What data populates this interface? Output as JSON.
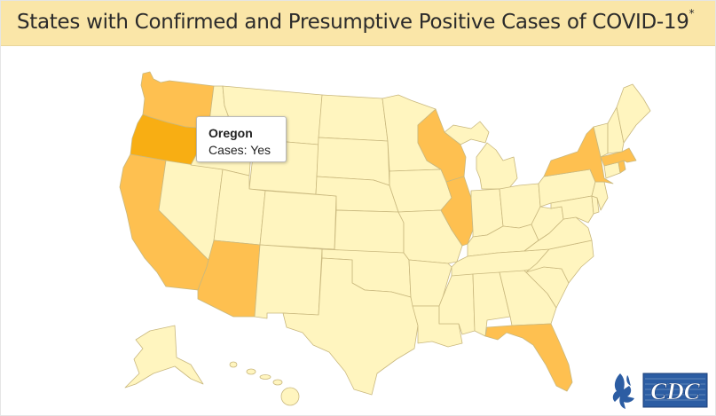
{
  "header": {
    "title": "States with Confirmed and Presumptive Positive Cases of COVID-19",
    "title_mark": "*"
  },
  "tooltip": {
    "name": "Oregon",
    "line_label": "Cases:",
    "line_value": "Yes"
  },
  "legend_colors": {
    "no_cases": "#fff5bf",
    "cases": "#fec050",
    "highlighted": "#f8ae13",
    "border": "#c9b87e"
  },
  "states": [
    {
      "name": "Washington",
      "cases": "Yes"
    },
    {
      "name": "Oregon",
      "cases": "Yes",
      "hovered": true
    },
    {
      "name": "California",
      "cases": "Yes"
    },
    {
      "name": "Arizona",
      "cases": "Yes"
    },
    {
      "name": "Illinois",
      "cases": "Yes"
    },
    {
      "name": "Wisconsin",
      "cases": "Yes"
    },
    {
      "name": "New York",
      "cases": "Yes"
    },
    {
      "name": "Massachusetts",
      "cases": "Yes"
    },
    {
      "name": "Rhode Island",
      "cases": "Yes"
    },
    {
      "name": "Florida",
      "cases": "Yes"
    },
    {
      "name": "Nevada",
      "cases": "No"
    },
    {
      "name": "Idaho",
      "cases": "No"
    },
    {
      "name": "Montana",
      "cases": "No"
    },
    {
      "name": "Wyoming",
      "cases": "No"
    },
    {
      "name": "Utah",
      "cases": "No"
    },
    {
      "name": "Colorado",
      "cases": "No"
    },
    {
      "name": "New Mexico",
      "cases": "No"
    },
    {
      "name": "North Dakota",
      "cases": "No"
    },
    {
      "name": "South Dakota",
      "cases": "No"
    },
    {
      "name": "Nebraska",
      "cases": "No"
    },
    {
      "name": "Kansas",
      "cases": "No"
    },
    {
      "name": "Oklahoma",
      "cases": "No"
    },
    {
      "name": "Texas",
      "cases": "No"
    },
    {
      "name": "Minnesota",
      "cases": "No"
    },
    {
      "name": "Iowa",
      "cases": "No"
    },
    {
      "name": "Missouri",
      "cases": "No"
    },
    {
      "name": "Arkansas",
      "cases": "No"
    },
    {
      "name": "Louisiana",
      "cases": "No"
    },
    {
      "name": "Michigan",
      "cases": "No"
    },
    {
      "name": "Indiana",
      "cases": "No"
    },
    {
      "name": "Ohio",
      "cases": "No"
    },
    {
      "name": "Kentucky",
      "cases": "No"
    },
    {
      "name": "Tennessee",
      "cases": "No"
    },
    {
      "name": "Mississippi",
      "cases": "No"
    },
    {
      "name": "Alabama",
      "cases": "No"
    },
    {
      "name": "Georgia",
      "cases": "No"
    },
    {
      "name": "South Carolina",
      "cases": "No"
    },
    {
      "name": "North Carolina",
      "cases": "No"
    },
    {
      "name": "Virginia",
      "cases": "No"
    },
    {
      "name": "West Virginia",
      "cases": "No"
    },
    {
      "name": "Pennsylvania",
      "cases": "No"
    },
    {
      "name": "Maryland",
      "cases": "No"
    },
    {
      "name": "Delaware",
      "cases": "No"
    },
    {
      "name": "New Jersey",
      "cases": "No"
    },
    {
      "name": "Connecticut",
      "cases": "No"
    },
    {
      "name": "Vermont",
      "cases": "No"
    },
    {
      "name": "New Hampshire",
      "cases": "No"
    },
    {
      "name": "Maine",
      "cases": "No"
    },
    {
      "name": "Alaska",
      "cases": "No"
    },
    {
      "name": "Hawaii",
      "cases": "No"
    }
  ],
  "logo": {
    "agency_text": "CDC",
    "colors": {
      "blue": "#2c5da3",
      "dark": "#1b3f7a"
    }
  }
}
